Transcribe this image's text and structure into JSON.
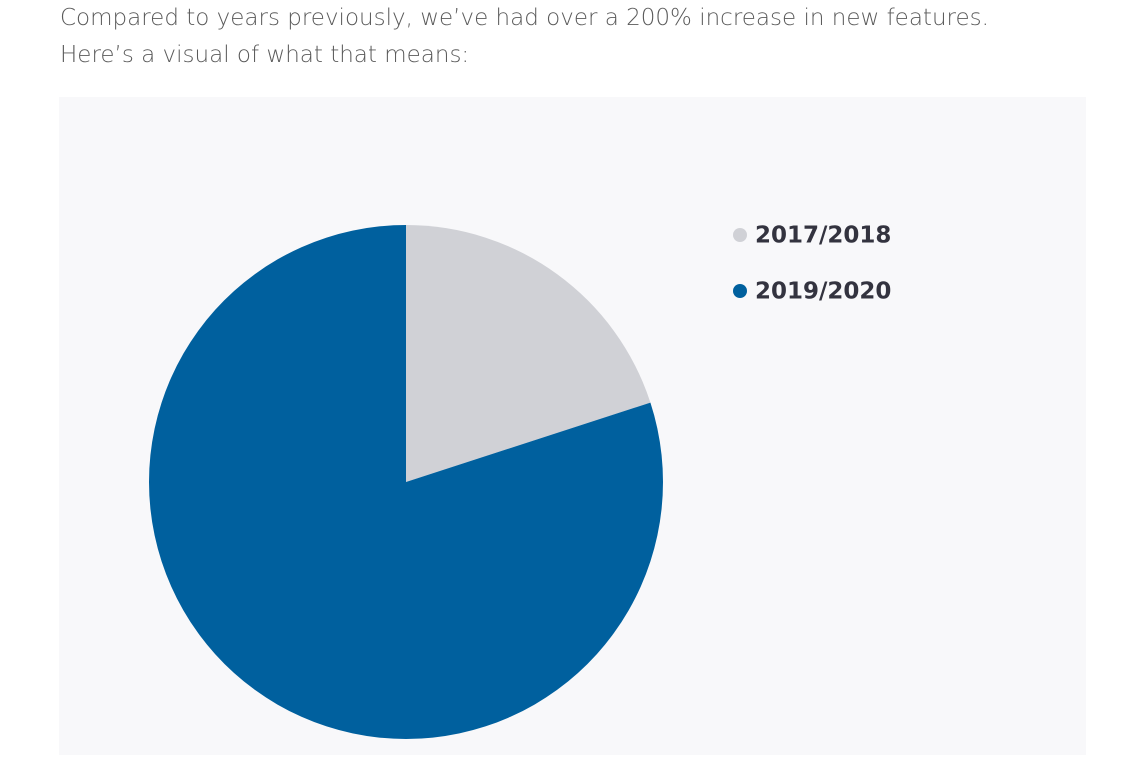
{
  "intro": "Compared to years previously, we’ve had over a 200% increase in new features. Here’s a visual of what that means:",
  "chart_data": {
    "type": "pie",
    "categories": [
      "2017/2018",
      "2019/2020"
    ],
    "values": [
      20,
      80
    ],
    "colors": [
      "#d0d1d6",
      "#00609e"
    ],
    "start_angle": 0,
    "direction": "clockwise"
  }
}
